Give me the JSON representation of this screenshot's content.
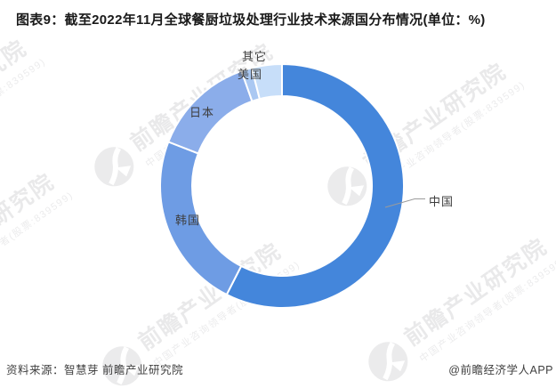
{
  "title": "图表9：截至2022年11月全球餐厨垃圾处理行业技术来源国分布情况(单位：%)",
  "chart_data": {
    "type": "pie",
    "subtype": "donut",
    "title": "截至2022年11月全球餐厨垃圾处理行业技术来源国分布情况",
    "unit": "%",
    "start_angle_deg": 0,
    "direction": "clockwise",
    "legend": false,
    "segments": [
      {
        "key": "china",
        "label": "中国",
        "value": 57.5,
        "color": "#4486db"
      },
      {
        "key": "korea",
        "label": "韩国",
        "value": 23.4,
        "color": "#6e9ce4"
      },
      {
        "key": "japan",
        "label": "日本",
        "value": 13.7,
        "color": "#8badea"
      },
      {
        "key": "usa",
        "label": "美国",
        "value": 1.4,
        "color": "#aac8f2"
      },
      {
        "key": "other",
        "label": "其它",
        "value": 4.0,
        "color": "#c7def9"
      }
    ]
  },
  "watermark": {
    "brand": "前瞻产业研究院",
    "slogan": "中国产业咨询领导者(股票:839599)"
  },
  "footer": {
    "source": "资料来源：智慧芽 前瞻产业研究院",
    "credit": "@前瞻经济学人APP"
  }
}
